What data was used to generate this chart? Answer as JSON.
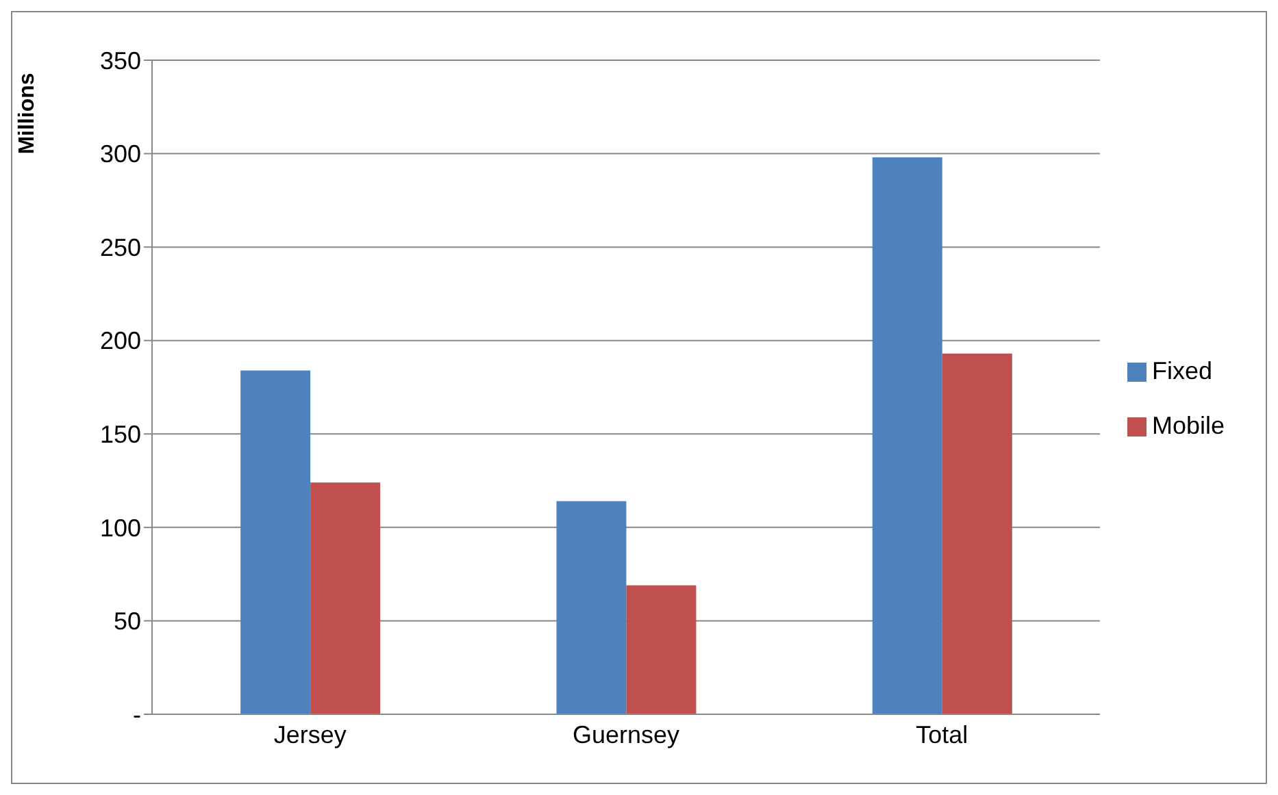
{
  "chart_data": {
    "type": "bar",
    "ylabel": "Millions",
    "categories": [
      "Jersey",
      "Guernsey",
      "Total"
    ],
    "series": [
      {
        "name": "Fixed",
        "color": "#4f81bd",
        "values": [
          184,
          114,
          298
        ]
      },
      {
        "name": "Mobile",
        "color": "#c0504d",
        "values": [
          124,
          69,
          193
        ]
      }
    ],
    "ylim": [
      0,
      350
    ],
    "yticks": [
      {
        "value": 0,
        "label": "-"
      },
      50,
      100,
      150,
      200,
      250,
      300,
      350
    ],
    "grid": "y",
    "legend": "right"
  }
}
